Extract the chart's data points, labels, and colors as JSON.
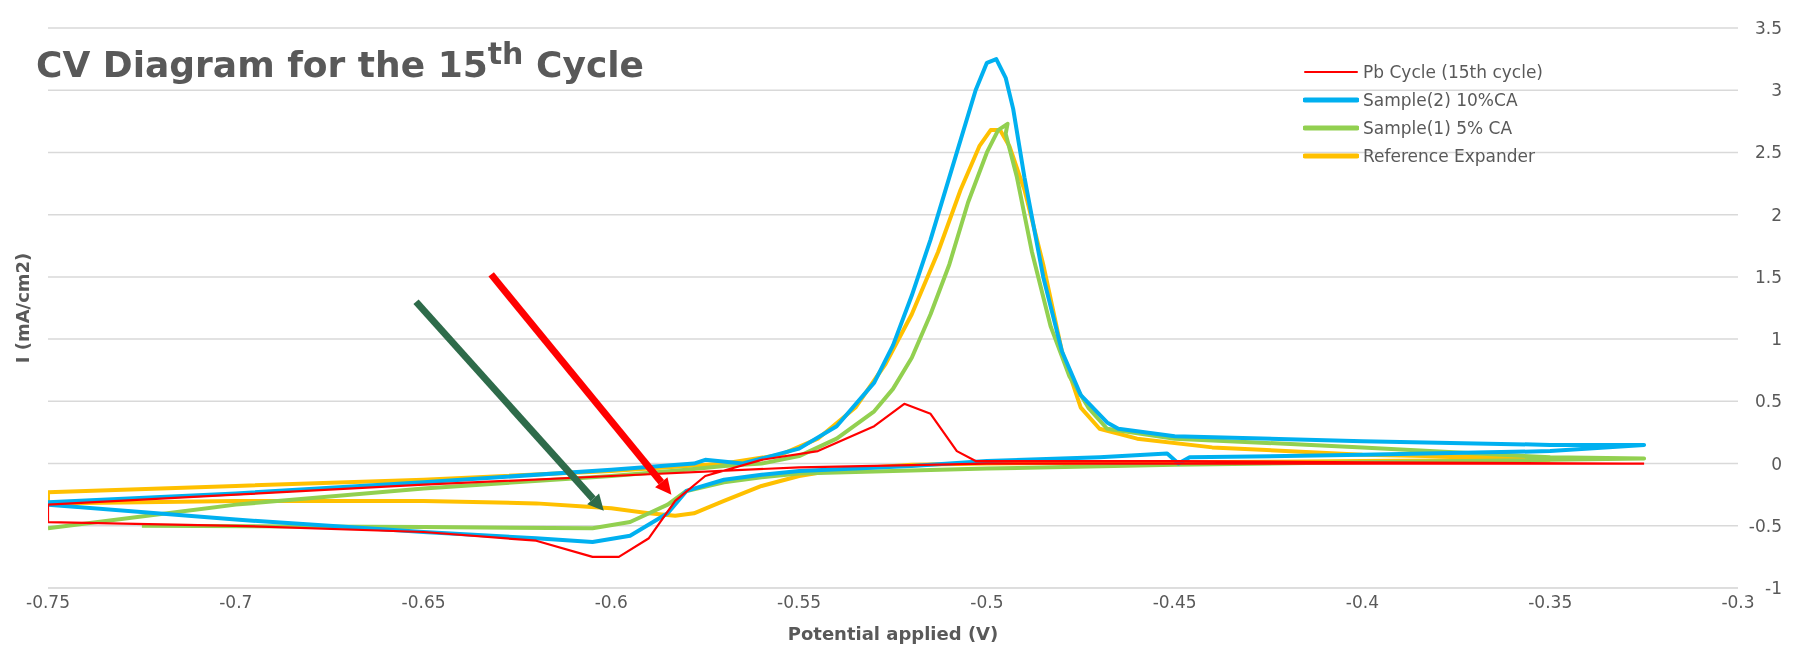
{
  "chart_data": {
    "type": "line",
    "title": "CV Diagram for the 15$^{th}$ Cycle",
    "xlabel": "Potential applied (V)",
    "ylabel": "I (mA/cm2)",
    "xlim": [
      -0.75,
      -0.3
    ],
    "xticks": [
      -0.75,
      -0.7,
      -0.65,
      -0.6,
      -0.55,
      -0.5,
      -0.45,
      -0.4,
      -0.35,
      -0.3
    ],
    "ylim": [
      -1,
      3.5
    ],
    "yticks": [
      -1,
      -0.5,
      0,
      0.5,
      1,
      1.5,
      2,
      2.5,
      3,
      3.5
    ],
    "grid": "y",
    "legend": "top right",
    "marker": "none",
    "line_style": "solid",
    "series": [
      {
        "name": "Pb Cycle (15th cycle)",
        "color": "#ff0000",
        "x": [
          -0.325,
          -0.4,
          -0.5,
          -0.55,
          -0.6,
          -0.65,
          -0.7,
          -0.75,
          -0.75,
          -0.7,
          -0.65,
          -0.62,
          -0.605,
          -0.598,
          -0.59,
          -0.583,
          -0.575,
          -0.56,
          -0.545,
          -0.53,
          -0.522,
          -0.515,
          -0.508,
          -0.503,
          -0.45,
          -0.4,
          -0.33
        ],
        "values": [
          0.0,
          0.0,
          0.0,
          -0.03,
          -0.1,
          -0.17,
          -0.25,
          -0.33,
          -0.47,
          -0.5,
          -0.55,
          -0.62,
          -0.75,
          -0.75,
          -0.6,
          -0.3,
          -0.1,
          0.03,
          0.1,
          0.3,
          0.48,
          0.4,
          0.1,
          0.02,
          0.02,
          0.01,
          0.0
        ]
      },
      {
        "name": "Sample(2) 10%CA",
        "color": "#00b0f0",
        "x": [
          -0.75,
          -0.7,
          -0.65,
          -0.62,
          -0.605,
          -0.595,
          -0.585,
          -0.58,
          -0.57,
          -0.56,
          -0.55,
          -0.52,
          -0.5,
          -0.47,
          -0.452,
          -0.449,
          -0.446,
          -0.4,
          -0.35,
          -0.325,
          -0.35,
          -0.4,
          -0.45,
          -0.465,
          -0.468,
          -0.475,
          -0.48,
          -0.485,
          -0.49,
          -0.493,
          -0.495,
          -0.4975,
          -0.5,
          -0.503,
          -0.508,
          -0.515,
          -0.52,
          -0.525,
          -0.53,
          -0.54,
          -0.55,
          -0.565,
          -0.575,
          -0.578,
          -0.6,
          -0.65,
          -0.7,
          -0.75
        ],
        "values": [
          -0.33,
          -0.45,
          -0.55,
          -0.6,
          -0.63,
          -0.58,
          -0.4,
          -0.22,
          -0.13,
          -0.09,
          -0.06,
          -0.02,
          0.02,
          0.05,
          0.08,
          0.0,
          0.05,
          0.07,
          0.1,
          0.15,
          0.15,
          0.18,
          0.22,
          0.28,
          0.33,
          0.55,
          0.9,
          1.5,
          2.3,
          2.85,
          3.1,
          3.25,
          3.22,
          3.0,
          2.5,
          1.8,
          1.35,
          0.95,
          0.65,
          0.3,
          0.12,
          0.0,
          0.03,
          0.0,
          -0.05,
          -0.15,
          -0.24,
          -0.31
        ]
      },
      {
        "name": "Sample(1) 5% CA",
        "color": "#92d050",
        "x": [
          -0.725,
          -0.65,
          -0.605,
          -0.595,
          -0.585,
          -0.58,
          -0.57,
          -0.56,
          -0.55,
          -0.5,
          -0.45,
          -0.4,
          -0.35,
          -0.325,
          -0.35,
          -0.4,
          -0.45,
          -0.468,
          -0.473,
          -0.478,
          -0.483,
          -0.488,
          -0.492,
          -0.495,
          -0.4945,
          -0.497,
          -0.5,
          -0.505,
          -0.51,
          -0.515,
          -0.52,
          -0.525,
          -0.53,
          -0.54,
          -0.55,
          -0.56,
          -0.57,
          -0.58,
          -0.6,
          -0.65,
          -0.7,
          -0.75
        ],
        "values": [
          -0.5,
          -0.51,
          -0.52,
          -0.47,
          -0.33,
          -0.22,
          -0.15,
          -0.11,
          -0.08,
          -0.04,
          -0.01,
          0.01,
          0.03,
          0.04,
          0.05,
          0.13,
          0.2,
          0.28,
          0.45,
          0.7,
          1.1,
          1.7,
          2.3,
          2.65,
          2.73,
          2.68,
          2.5,
          2.1,
          1.6,
          1.2,
          0.85,
          0.6,
          0.42,
          0.2,
          0.06,
          0.0,
          -0.02,
          -0.05,
          -0.1,
          -0.2,
          -0.33,
          -0.52
        ]
      },
      {
        "name": "Reference Expander",
        "color": "#ffc000",
        "x": [
          -0.35,
          -0.4,
          -0.44,
          -0.46,
          -0.47,
          -0.475,
          -0.48,
          -0.485,
          -0.49,
          -0.494,
          -0.4965,
          -0.499,
          -0.502,
          -0.507,
          -0.513,
          -0.52,
          -0.527,
          -0.535,
          -0.545,
          -0.555,
          -0.57,
          -0.6,
          -0.65,
          -0.7,
          -0.75,
          -0.75,
          -0.7,
          -0.65,
          -0.62,
          -0.6,
          -0.59,
          -0.583,
          -0.578,
          -0.57,
          -0.56,
          -0.55,
          -0.54,
          -0.52,
          -0.5,
          -0.45,
          -0.4,
          -0.35
        ],
        "values": [
          0.04,
          0.07,
          0.13,
          0.2,
          0.28,
          0.45,
          0.9,
          1.6,
          2.2,
          2.55,
          2.68,
          2.68,
          2.55,
          2.2,
          1.7,
          1.2,
          0.8,
          0.45,
          0.2,
          0.07,
          0.0,
          -0.06,
          -0.13,
          -0.18,
          -0.23,
          -0.32,
          -0.3,
          -0.3,
          -0.32,
          -0.36,
          -0.4,
          -0.42,
          -0.4,
          -0.3,
          -0.18,
          -0.1,
          -0.05,
          -0.01,
          0.0,
          0.01,
          0.02,
          0.03
        ]
      }
    ]
  }
}
